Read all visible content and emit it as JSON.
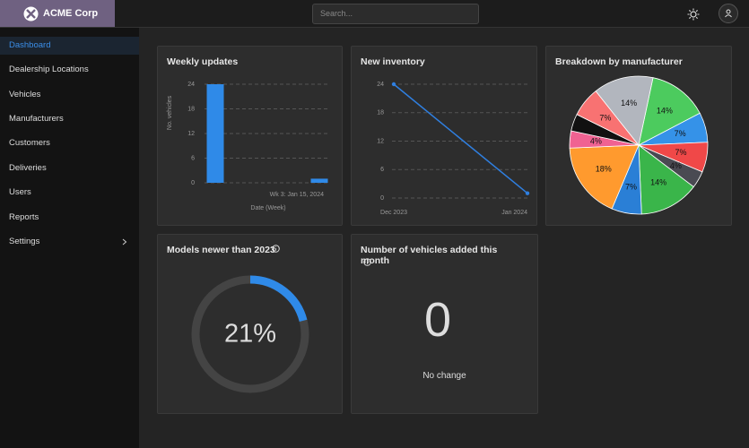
{
  "header": {
    "brand": "ACME Corp",
    "search_placeholder": "Search..."
  },
  "nav": {
    "items": [
      "Dashboard",
      "Dealership Locations",
      "Vehicles",
      "Manufacturers",
      "Customers",
      "Deliveries",
      "Users",
      "Reports",
      "Settings"
    ]
  },
  "cards": [
    {
      "chart_data": {
        "type": "bar",
        "title": "Weekly updates",
        "x_label": "Date (Week)",
        "y_label": "No. vehicles",
        "categories": [
          null,
          "Wk 3: Jan 15, 2024"
        ],
        "values": [
          24,
          1
        ],
        "color": "#2f8ae8",
        "ylim": [
          0,
          24
        ],
        "yticks": [
          0,
          6,
          12,
          18,
          24
        ],
        "grid": true
      }
    },
    {
      "chart_data": {
        "type": "line",
        "title": "New inventory",
        "x": [
          "Dec 2023",
          "Jan 2024"
        ],
        "values": [
          24,
          1
        ],
        "color": "#2f7fe0",
        "ylim": [
          0,
          24
        ],
        "yticks": [
          0,
          6,
          12,
          18,
          24
        ],
        "grid": true
      }
    },
    {
      "chart_data": {
        "type": "pie",
        "title": "Breakdown by manufacturer",
        "values": [
          14,
          7,
          7,
          4,
          14,
          7,
          18,
          4,
          4,
          7,
          14
        ],
        "value_labels": [
          "14%",
          "7%",
          "7%",
          "4%",
          "14%",
          "7%",
          "18%",
          "4%",
          null,
          "7%",
          "14%"
        ],
        "colors": [
          "#4ccb5e",
          "#3592e8",
          "#f04848",
          "#4a4a52",
          "#3ab54a",
          "#2a7fd6",
          "#ff9a2e",
          "#f06292",
          "#111111",
          "#f87272",
          "#b2b6be"
        ]
      }
    },
    {
      "chart_data": {
        "type": "gauge",
        "title": "Models newer than 2023",
        "value": 21,
        "value_label": "21%",
        "color": "#2f8ae8"
      }
    },
    {
      "title": "Number of vehicles added this month",
      "value": 0,
      "note": "No change"
    }
  ]
}
